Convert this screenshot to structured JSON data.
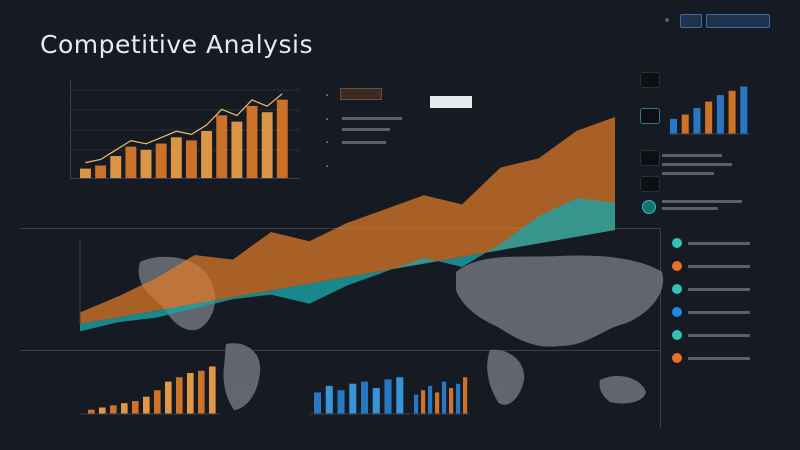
{
  "header": {
    "title": "Competitive Analysis",
    "buttons": [
      "",
      ""
    ]
  },
  "chart_data": [
    {
      "type": "bar",
      "categories": [
        "",
        "",
        "",
        "",
        "",
        "",
        "",
        "",
        "",
        "",
        "",
        "",
        "",
        ""
      ],
      "values": [
        6,
        8,
        14,
        20,
        18,
        22,
        26,
        24,
        30,
        40,
        36,
        46,
        42,
        50
      ],
      "ylim": [
        0,
        60
      ],
      "xlabel": "",
      "ylabel": "",
      "title": ""
    },
    {
      "type": "area",
      "series": [
        {
          "values": [
            5,
            12,
            20,
            30,
            28,
            40,
            36,
            44,
            50,
            56,
            52,
            68,
            72,
            84,
            90
          ]
        },
        {
          "values": [
            2,
            6,
            8,
            12,
            16,
            18,
            14,
            22,
            28,
            34,
            30,
            40,
            52,
            60,
            58
          ]
        }
      ],
      "ylim": [
        0,
        100
      ]
    },
    {
      "type": "bar",
      "values": [
        4,
        6,
        8,
        10,
        12,
        16,
        22,
        30,
        34,
        38,
        40,
        44
      ],
      "ylim": [
        0,
        50
      ]
    },
    {
      "type": "bar",
      "values": [
        20,
        26,
        22,
        28,
        30,
        24,
        32,
        34
      ],
      "ylim": [
        0,
        50
      ]
    },
    {
      "type": "bar",
      "values": [
        18,
        22,
        26,
        20,
        30,
        24,
        28,
        34
      ],
      "ylim": [
        0,
        50
      ]
    },
    {
      "type": "bar",
      "values": [
        14,
        18,
        24,
        30,
        36,
        40,
        44
      ],
      "ylim": [
        0,
        50
      ]
    }
  ],
  "side_panel": {
    "items": [
      {
        "color": "#2ec4b6"
      },
      {
        "color": "#e8702a"
      },
      {
        "color": "#2ec4b6"
      },
      {
        "color": "#1e88e5"
      },
      {
        "color": "#2ec4b6"
      },
      {
        "color": "#e8702a"
      }
    ]
  },
  "colors": {
    "orange": "#e07b2a",
    "orange_light": "#f0a34a",
    "teal": "#1aa3a6",
    "blue": "#2a7fd1",
    "background": "#161a22",
    "gridline": "#3a404b",
    "map": "#6b6f75"
  }
}
